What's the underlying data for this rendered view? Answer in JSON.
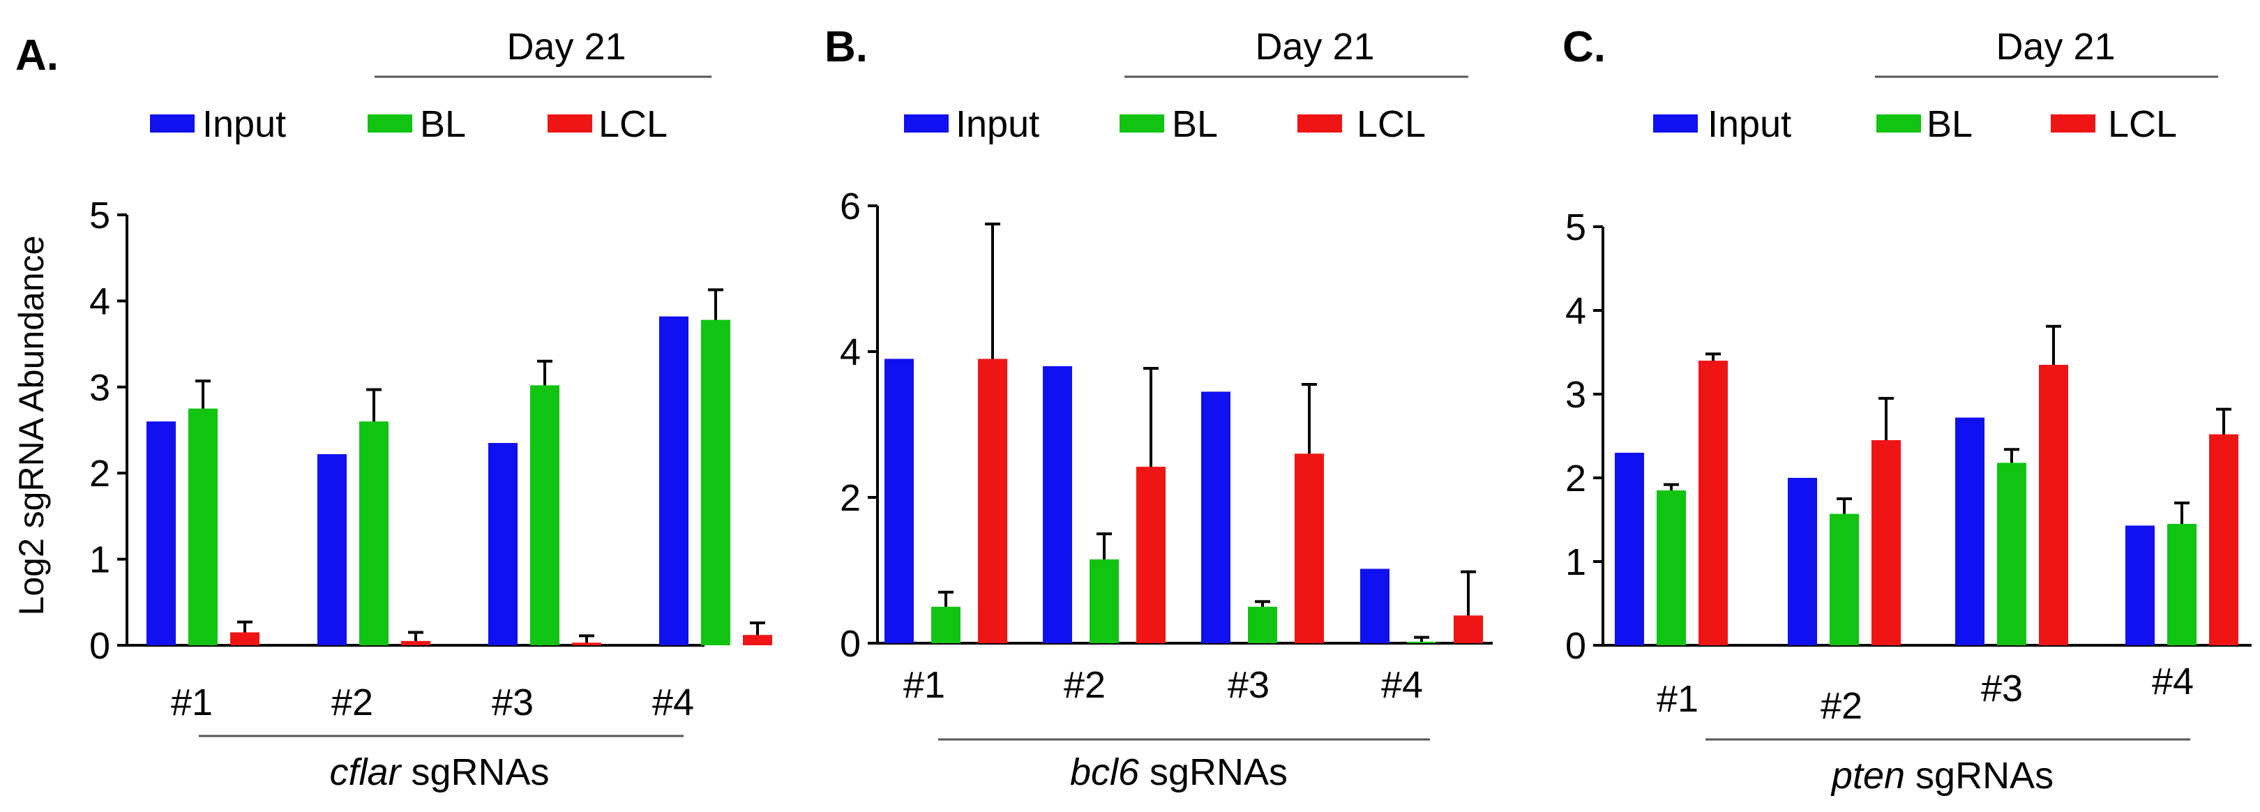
{
  "figure": {
    "ylabel": "Log2 sgRNA Abundance",
    "day_label": "Day 21"
  },
  "colors": {
    "Input": "#1010f0",
    "BL": "#11c411",
    "LCL": "#f01515"
  },
  "chart_data": [
    {
      "type": "bar",
      "panel": "A.",
      "title": "Day 21",
      "legend": [
        "Input",
        "BL",
        "LCL"
      ],
      "ylabel": "Log2 sgRNA Abundance",
      "xlabel_gene": "cflar",
      "xlabel_suffix": " sgRNAs",
      "categories": [
        "#1",
        "#2",
        "#3",
        "#4"
      ],
      "ylim": [
        0,
        5
      ],
      "yticks": [
        "0",
        "1",
        "2",
        "3",
        "4",
        "5"
      ],
      "series": [
        {
          "name": "Input",
          "values": [
            2.6,
            2.22,
            2.35,
            3.82
          ],
          "errors": [
            0,
            0,
            0,
            0
          ]
        },
        {
          "name": "BL",
          "values": [
            2.75,
            2.6,
            3.02,
            3.78
          ],
          "errors": [
            0.32,
            0.37,
            0.28,
            0.35
          ]
        },
        {
          "name": "LCL",
          "values": [
            0.15,
            0.05,
            0.03,
            0.12
          ],
          "errors": [
            0.12,
            0.1,
            0.08,
            0.14
          ]
        }
      ]
    },
    {
      "type": "bar",
      "panel": "B.",
      "title": "Day 21",
      "legend": [
        "Input",
        "BL",
        "LCL"
      ],
      "xlabel_gene": "bcl6",
      "xlabel_suffix": " sgRNAs",
      "categories": [
        "#1",
        "#2",
        "#3",
        "#4"
      ],
      "ylim": [
        0,
        6
      ],
      "yticks": [
        "0",
        "2",
        "4",
        "6"
      ],
      "series": [
        {
          "name": "Input",
          "values": [
            3.9,
            3.8,
            3.45,
            1.02
          ],
          "errors": [
            0,
            0,
            0,
            0
          ]
        },
        {
          "name": "BL",
          "values": [
            0.5,
            1.15,
            0.5,
            0.02
          ],
          "errors": [
            0.2,
            0.35,
            0.07,
            0.06
          ]
        },
        {
          "name": "LCL",
          "values": [
            3.9,
            2.42,
            2.6,
            0.38
          ],
          "errors": [
            1.85,
            1.35,
            0.95,
            0.6
          ]
        }
      ]
    },
    {
      "type": "bar",
      "panel": "C.",
      "title": "Day 21",
      "legend": [
        "Input",
        "BL",
        "LCL"
      ],
      "xlabel_gene": "pten",
      "xlabel_suffix": " sgRNAs",
      "categories": [
        "#1",
        "#2",
        "#3",
        "#4"
      ],
      "ylim": [
        0,
        5
      ],
      "yticks": [
        "0",
        "1",
        "2",
        "3",
        "4",
        "5"
      ],
      "series": [
        {
          "name": "Input",
          "values": [
            2.3,
            2.0,
            2.72,
            1.43
          ],
          "errors": [
            0,
            0,
            0,
            0
          ]
        },
        {
          "name": "BL",
          "values": [
            1.85,
            1.57,
            2.18,
            1.45
          ],
          "errors": [
            0.07,
            0.18,
            0.16,
            0.25
          ]
        },
        {
          "name": "LCL",
          "values": [
            3.4,
            2.45,
            3.35,
            2.52
          ],
          "errors": [
            0.08,
            0.5,
            0.46,
            0.3
          ]
        }
      ]
    }
  ]
}
